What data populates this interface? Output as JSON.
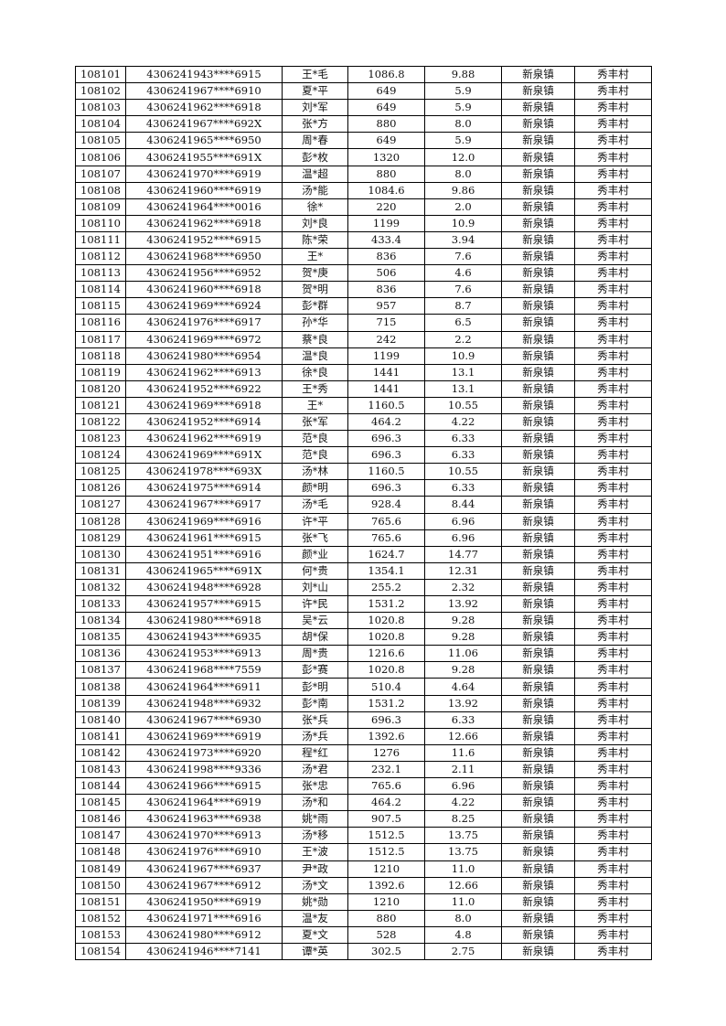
{
  "table": {
    "rows": [
      [
        "108101",
        "4306241943****6915",
        "王*毛",
        "1086.8",
        "9.88",
        "新泉镇",
        "秀丰村"
      ],
      [
        "108102",
        "4306241967****6910",
        "夏*平",
        "649",
        "5.9",
        "新泉镇",
        "秀丰村"
      ],
      [
        "108103",
        "4306241962****6918",
        "刘*军",
        "649",
        "5.9",
        "新泉镇",
        "秀丰村"
      ],
      [
        "108104",
        "4306241967****692X",
        "张*方",
        "880",
        "8.0",
        "新泉镇",
        "秀丰村"
      ],
      [
        "108105",
        "4306241965****6950",
        "周*春",
        "649",
        "5.9",
        "新泉镇",
        "秀丰村"
      ],
      [
        "108106",
        "4306241955****691X",
        "彭*枚",
        "1320",
        "12.0",
        "新泉镇",
        "秀丰村"
      ],
      [
        "108107",
        "4306241970****6919",
        "温*超",
        "880",
        "8.0",
        "新泉镇",
        "秀丰村"
      ],
      [
        "108108",
        "4306241960****6919",
        "汤*能",
        "1084.6",
        "9.86",
        "新泉镇",
        "秀丰村"
      ],
      [
        "108109",
        "4306241964****0016",
        "徐*",
        "220",
        "2.0",
        "新泉镇",
        "秀丰村"
      ],
      [
        "108110",
        "4306241962****6918",
        "刘*良",
        "1199",
        "10.9",
        "新泉镇",
        "秀丰村"
      ],
      [
        "108111",
        "4306241952****6915",
        "陈*荣",
        "433.4",
        "3.94",
        "新泉镇",
        "秀丰村"
      ],
      [
        "108112",
        "4306241968****6950",
        "王*",
        "836",
        "7.6",
        "新泉镇",
        "秀丰村"
      ],
      [
        "108113",
        "4306241956****6952",
        "贺*庚",
        "506",
        "4.6",
        "新泉镇",
        "秀丰村"
      ],
      [
        "108114",
        "4306241960****6918",
        "贺*明",
        "836",
        "7.6",
        "新泉镇",
        "秀丰村"
      ],
      [
        "108115",
        "4306241969****6924",
        "彭*群",
        "957",
        "8.7",
        "新泉镇",
        "秀丰村"
      ],
      [
        "108116",
        "4306241976****6917",
        "孙*华",
        "715",
        "6.5",
        "新泉镇",
        "秀丰村"
      ],
      [
        "108117",
        "4306241969****6972",
        "蔡*良",
        "242",
        "2.2",
        "新泉镇",
        "秀丰村"
      ],
      [
        "108118",
        "4306241980****6954",
        "温*良",
        "1199",
        "10.9",
        "新泉镇",
        "秀丰村"
      ],
      [
        "108119",
        "4306241962****6913",
        "徐*良",
        "1441",
        "13.1",
        "新泉镇",
        "秀丰村"
      ],
      [
        "108120",
        "4306241952****6922",
        "王*秀",
        "1441",
        "13.1",
        "新泉镇",
        "秀丰村"
      ],
      [
        "108121",
        "4306241969****6918",
        "王*",
        "1160.5",
        "10.55",
        "新泉镇",
        "秀丰村"
      ],
      [
        "108122",
        "4306241952****6914",
        "张*军",
        "464.2",
        "4.22",
        "新泉镇",
        "秀丰村"
      ],
      [
        "108123",
        "4306241962****6919",
        "范*良",
        "696.3",
        "6.33",
        "新泉镇",
        "秀丰村"
      ],
      [
        "108124",
        "4306241969****691X",
        "范*良",
        "696.3",
        "6.33",
        "新泉镇",
        "秀丰村"
      ],
      [
        "108125",
        "4306241978****693X",
        "汤*林",
        "1160.5",
        "10.55",
        "新泉镇",
        "秀丰村"
      ],
      [
        "108126",
        "4306241975****6914",
        "颜*明",
        "696.3",
        "6.33",
        "新泉镇",
        "秀丰村"
      ],
      [
        "108127",
        "4306241967****6917",
        "汤*毛",
        "928.4",
        "8.44",
        "新泉镇",
        "秀丰村"
      ],
      [
        "108128",
        "4306241969****6916",
        "许*平",
        "765.6",
        "6.96",
        "新泉镇",
        "秀丰村"
      ],
      [
        "108129",
        "4306241961****6915",
        "张*飞",
        "765.6",
        "6.96",
        "新泉镇",
        "秀丰村"
      ],
      [
        "108130",
        "4306241951****6916",
        "颜*业",
        "1624.7",
        "14.77",
        "新泉镇",
        "秀丰村"
      ],
      [
        "108131",
        "4306241965****691X",
        "何*贵",
        "1354.1",
        "12.31",
        "新泉镇",
        "秀丰村"
      ],
      [
        "108132",
        "4306241948****6928",
        "刘*山",
        "255.2",
        "2.32",
        "新泉镇",
        "秀丰村"
      ],
      [
        "108133",
        "4306241957****6915",
        "许*民",
        "1531.2",
        "13.92",
        "新泉镇",
        "秀丰村"
      ],
      [
        "108134",
        "4306241980****6918",
        "吴*云",
        "1020.8",
        "9.28",
        "新泉镇",
        "秀丰村"
      ],
      [
        "108135",
        "4306241943****6935",
        "胡*保",
        "1020.8",
        "9.28",
        "新泉镇",
        "秀丰村"
      ],
      [
        "108136",
        "4306241953****6913",
        "周*贵",
        "1216.6",
        "11.06",
        "新泉镇",
        "秀丰村"
      ],
      [
        "108137",
        "4306241968****7559",
        "彭*赛",
        "1020.8",
        "9.28",
        "新泉镇",
        "秀丰村"
      ],
      [
        "108138",
        "4306241964****6911",
        "彭*明",
        "510.4",
        "4.64",
        "新泉镇",
        "秀丰村"
      ],
      [
        "108139",
        "4306241948****6932",
        "彭*南",
        "1531.2",
        "13.92",
        "新泉镇",
        "秀丰村"
      ],
      [
        "108140",
        "4306241967****6930",
        "张*兵",
        "696.3",
        "6.33",
        "新泉镇",
        "秀丰村"
      ],
      [
        "108141",
        "4306241969****6919",
        "汤*兵",
        "1392.6",
        "12.66",
        "新泉镇",
        "秀丰村"
      ],
      [
        "108142",
        "4306241973****6920",
        "程*红",
        "1276",
        "11.6",
        "新泉镇",
        "秀丰村"
      ],
      [
        "108143",
        "4306241998****9336",
        "汤*君",
        "232.1",
        "2.11",
        "新泉镇",
        "秀丰村"
      ],
      [
        "108144",
        "4306241966****6915",
        "张*忠",
        "765.6",
        "6.96",
        "新泉镇",
        "秀丰村"
      ],
      [
        "108145",
        "4306241964****6919",
        "汤*和",
        "464.2",
        "4.22",
        "新泉镇",
        "秀丰村"
      ],
      [
        "108146",
        "4306241963****6938",
        "姚*雨",
        "907.5",
        "8.25",
        "新泉镇",
        "秀丰村"
      ],
      [
        "108147",
        "4306241970****6913",
        "汤*移",
        "1512.5",
        "13.75",
        "新泉镇",
        "秀丰村"
      ],
      [
        "108148",
        "4306241976****6910",
        "王*波",
        "1512.5",
        "13.75",
        "新泉镇",
        "秀丰村"
      ],
      [
        "108149",
        "4306241967****6937",
        "尹*政",
        "1210",
        "11.0",
        "新泉镇",
        "秀丰村"
      ],
      [
        "108150",
        "4306241967****6912",
        "汤*文",
        "1392.6",
        "12.66",
        "新泉镇",
        "秀丰村"
      ],
      [
        "108151",
        "4306241950****6919",
        "姚*勋",
        "1210",
        "11.0",
        "新泉镇",
        "秀丰村"
      ],
      [
        "108152",
        "4306241971****6916",
        "温*友",
        "880",
        "8.0",
        "新泉镇",
        "秀丰村"
      ],
      [
        "108153",
        "4306241980****6912",
        "夏*文",
        "528",
        "4.8",
        "新泉镇",
        "秀丰村"
      ],
      [
        "108154",
        "4306241946****7141",
        "谭*英",
        "302.5",
        "2.75",
        "新泉镇",
        "秀丰村"
      ]
    ]
  }
}
